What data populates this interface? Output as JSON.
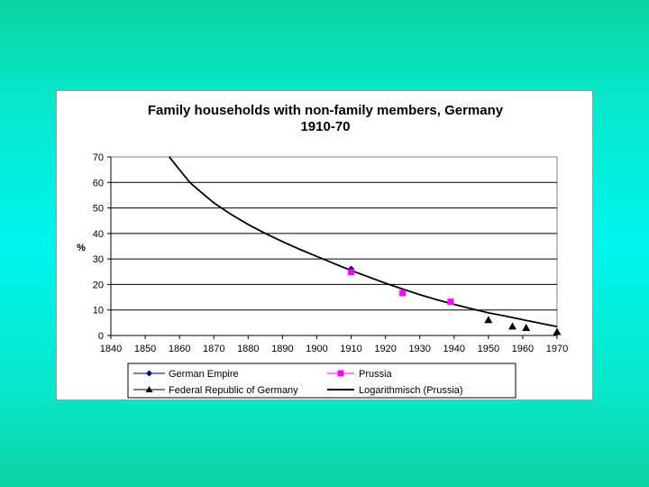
{
  "chart_data": {
    "type": "scatter",
    "title_line1": "Family households with non-family members, Germany",
    "title_line2": "1910-70",
    "ylabel": "%",
    "xlabel": "",
    "xlim": [
      1840,
      1970
    ],
    "ylim": [
      0,
      70
    ],
    "x_ticks": [
      1840,
      1850,
      1860,
      1870,
      1880,
      1890,
      1900,
      1910,
      1920,
      1930,
      1940,
      1950,
      1960,
      1970
    ],
    "y_ticks": [
      0,
      10,
      20,
      30,
      40,
      50,
      60,
      70
    ],
    "grid": true,
    "legend_position": "bottom",
    "series": [
      {
        "name": "German Empire",
        "marker": "diamond",
        "color": "#000080",
        "points": [
          [
            1910,
            26
          ]
        ]
      },
      {
        "name": "Prussia",
        "marker": "square",
        "color": "#ff00ff",
        "points": [
          [
            1910,
            24.8
          ],
          [
            1925,
            16.6
          ],
          [
            1939,
            13.2
          ]
        ]
      },
      {
        "name": "Federal Republic of Germany",
        "marker": "triangle",
        "color": "#000000",
        "points": [
          [
            1950,
            6.1
          ],
          [
            1957,
            3.6
          ],
          [
            1961,
            3.0
          ],
          [
            1970,
            1.4
          ]
        ]
      }
    ],
    "trendline": {
      "name": "Logarithmisch (Prussia)",
      "color": "#000000",
      "points": [
        [
          1857,
          70
        ],
        [
          1860,
          65
        ],
        [
          1863,
          60
        ],
        [
          1866,
          56.5
        ],
        [
          1870,
          52
        ],
        [
          1875,
          47.5
        ],
        [
          1880,
          43.5
        ],
        [
          1885,
          40
        ],
        [
          1890,
          36.8
        ],
        [
          1895,
          33.8
        ],
        [
          1900,
          31
        ],
        [
          1905,
          28.2
        ],
        [
          1910,
          25.5
        ],
        [
          1915,
          23
        ],
        [
          1920,
          20.5
        ],
        [
          1925,
          18.2
        ],
        [
          1930,
          16
        ],
        [
          1935,
          14
        ],
        [
          1940,
          12.2
        ],
        [
          1945,
          10.5
        ],
        [
          1950,
          8.9
        ],
        [
          1955,
          7.6
        ],
        [
          1960,
          6.2
        ],
        [
          1965,
          4.8
        ],
        [
          1970,
          3.5
        ]
      ]
    }
  }
}
